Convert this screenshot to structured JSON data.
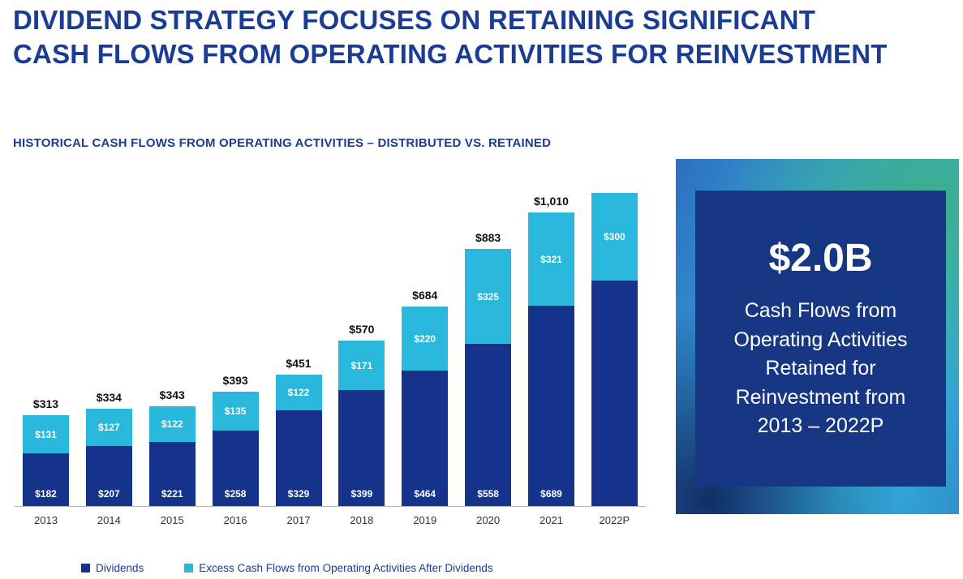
{
  "title": "DIVIDEND STRATEGY FOCUSES ON RETAINING SIGNIFICANT CASH FLOWS FROM OPERATING ACTIVITIES FOR REINVESTMENT",
  "chart_heading": "HISTORICAL CASH FLOWS FROM OPERATING ACTIVITIES – DISTRIBUTED VS. RETAINED",
  "colors": {
    "title_blue": "#1B3C94",
    "dividends_blue": "#15338A",
    "excess_cyan": "#29B8DB"
  },
  "chart_data": {
    "type": "bar",
    "stacked": true,
    "title": "HISTORICAL CASH FLOWS FROM OPERATING ACTIVITIES – DISTRIBUTED VS. RETAINED",
    "categories": [
      "2013",
      "2014",
      "2015",
      "2016",
      "2017",
      "2018",
      "2019",
      "2020",
      "2021",
      "2022P"
    ],
    "series": [
      {
        "name": "Dividends",
        "color": "#15338A",
        "values": [
          182,
          207,
          221,
          258,
          329,
          399,
          464,
          558,
          689,
          775
        ],
        "labels": [
          "$182",
          "$207",
          "$221",
          "$258",
          "$329",
          "$399",
          "$464",
          "$558",
          "$689",
          ""
        ]
      },
      {
        "name": "Excess Cash Flows from Operating Activities After Dividends",
        "color": "#29B8DB",
        "values": [
          131,
          127,
          122,
          135,
          122,
          171,
          220,
          325,
          321,
          300
        ],
        "labels": [
          "$131",
          "$127",
          "$122",
          "$135",
          "$122",
          "$171",
          "$220",
          "$325",
          "$321",
          "$300"
        ]
      }
    ],
    "totals": [
      313,
      334,
      343,
      393,
      451,
      570,
      684,
      883,
      1010,
      1075
    ],
    "total_labels": [
      "$313",
      "$334",
      "$343",
      "$393",
      "$451",
      "$570",
      "$684",
      "$883",
      "$1,010",
      ""
    ],
    "ylim": [
      0,
      1100
    ],
    "grid": false,
    "legend_position": "bottom"
  },
  "legend": [
    {
      "label": "Dividends",
      "color": "#15338A"
    },
    {
      "label": "Excess Cash Flows from Operating Activities After Dividends",
      "color": "#29B8DB"
    }
  ],
  "callout": {
    "value": "$2.0B",
    "description": "Cash Flows from Operating Activities Retained for Reinvestment from 2013 – 2022P"
  }
}
